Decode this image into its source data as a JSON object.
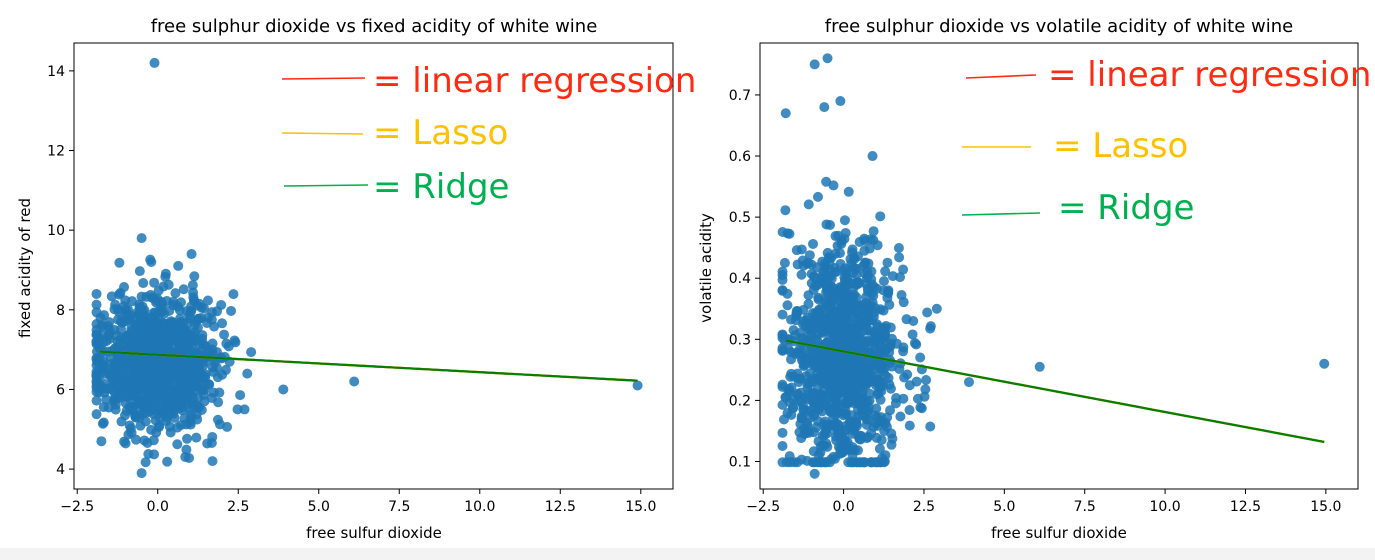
{
  "chart_data": [
    {
      "type": "scatter",
      "title": "free sulphur dioxide vs fixed acidity of white wine",
      "xlabel": "free sulfur dioxide",
      "ylabel": "fixed acidity of red",
      "xlim": [
        -2.6,
        16.0
      ],
      "ylim": [
        3.5,
        14.7
      ],
      "xticks": [
        "−2.5",
        "0.0",
        "2.5",
        "5.0",
        "7.5",
        "10.0",
        "12.5",
        "15.0"
      ],
      "yticks": [
        "4",
        "6",
        "8",
        "10",
        "12",
        "14"
      ],
      "points": [
        [
          -0.1,
          14.2
        ],
        [
          -0.5,
          3.9
        ],
        [
          -0.5,
          9.8
        ],
        [
          -0.2,
          9.2
        ],
        [
          1.05,
          9.4
        ],
        [
          3.9,
          6.0
        ],
        [
          6.1,
          6.2
        ],
        [
          14.9,
          6.1
        ],
        [
          -1.75,
          4.7
        ],
        [
          1.7,
          4.2
        ]
      ],
      "cluster": {
        "x_mean": 0.0,
        "x_sd": 0.9,
        "y_mean": 6.7,
        "y_sd": 0.8
      },
      "regression_lines": [
        {
          "name": "linear regression",
          "color": "#ff0000",
          "x": [
            -1.8,
            14.9
          ],
          "y": [
            6.95,
            6.22
          ]
        },
        {
          "name": "Lasso",
          "color": "#ffc000",
          "x": [
            -1.8,
            14.9
          ],
          "y": [
            6.95,
            6.22
          ]
        },
        {
          "name": "Ridge",
          "color": "#008000",
          "x": [
            -1.8,
            14.9
          ],
          "y": [
            6.95,
            6.22
          ]
        }
      ],
      "annotations": [
        {
          "label": "= linear regression",
          "color": "#ff2a12"
        },
        {
          "label": "= Lasso",
          "color": "#ffc000"
        },
        {
          "label": "= Ridge",
          "color": "#00b050"
        }
      ]
    },
    {
      "type": "scatter",
      "title": "free sulphur dioxide vs volatile acidity of white wine",
      "xlabel": "free sulfur dioxide",
      "ylabel": "volatile acidity",
      "xlim": [
        -2.6,
        16.0
      ],
      "ylim": [
        0.055,
        0.785
      ],
      "xticks": [
        "−2.5",
        "0.0",
        "2.5",
        "5.0",
        "7.5",
        "10.0",
        "12.5",
        "15.0"
      ],
      "yticks": [
        "0.1",
        "0.2",
        "0.3",
        "0.4",
        "0.5",
        "0.6",
        "0.7"
      ],
      "points": [
        [
          -0.5,
          0.76
        ],
        [
          -0.9,
          0.75
        ],
        [
          -1.8,
          0.67
        ],
        [
          -0.6,
          0.68
        ],
        [
          -0.1,
          0.69
        ],
        [
          0.9,
          0.6
        ],
        [
          -0.9,
          0.08
        ],
        [
          3.9,
          0.23
        ],
        [
          6.1,
          0.255
        ],
        [
          14.95,
          0.26
        ],
        [
          2.9,
          0.35
        ]
      ],
      "cluster": {
        "x_mean": 0.0,
        "x_sd": 0.9,
        "y_mean": 0.27,
        "y_sd": 0.09
      },
      "regression_lines": [
        {
          "name": "linear regression",
          "color": "#ff0000",
          "x": [
            -1.8,
            14.95
          ],
          "y": [
            0.298,
            0.132
          ]
        },
        {
          "name": "Lasso",
          "color": "#ffc000",
          "x": [
            -1.8,
            14.95
          ],
          "y": [
            0.298,
            0.132
          ]
        },
        {
          "name": "Ridge",
          "color": "#008000",
          "x": [
            -1.8,
            14.95
          ],
          "y": [
            0.298,
            0.132
          ]
        }
      ],
      "annotations": [
        {
          "label": "= linear regression",
          "color": "#ff2a12"
        },
        {
          "label": "= Lasso",
          "color": "#ffc000"
        },
        {
          "label": "= Ridge",
          "color": "#00b050"
        }
      ]
    }
  ],
  "colors": {
    "point": "#1f77b4"
  }
}
